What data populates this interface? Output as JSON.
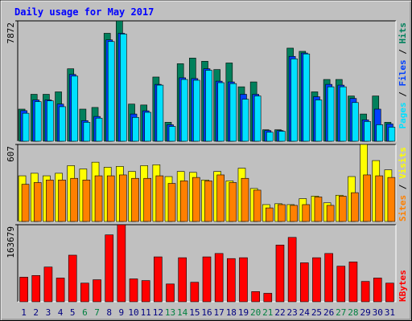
{
  "chart_data": [
    {
      "type": "bar",
      "title": "Daily usage for May 2017",
      "legend_separator": " / ",
      "ylim": [
        0,
        7872
      ],
      "yticks": [
        7872
      ],
      "series": [
        {
          "name": "Hits",
          "color": "#00805c",
          "values": [
            2100,
            3070,
            3070,
            3230,
            4740,
            2100,
            2210,
            7060,
            7872,
            2430,
            2370,
            4200,
            1240,
            5070,
            5440,
            5230,
            4690,
            5120,
            3560,
            3880,
            750,
            750,
            6090,
            5880,
            3230,
            4040,
            4040,
            2960,
            1780,
            2960,
            1240
          ]
        },
        {
          "name": "Files",
          "color": "#0040ff",
          "values": [
            2000,
            2700,
            2700,
            2430,
            4370,
            1350,
            1620,
            6630,
            7060,
            1780,
            1990,
            3720,
            1080,
            4150,
            4100,
            4740,
            3930,
            3880,
            3070,
            3070,
            700,
            700,
            5550,
            5770,
            2910,
            3720,
            3670,
            2800,
            1400,
            2100,
            1130
          ]
        },
        {
          "name": "Pages",
          "color": "#00e0ff",
          "values": [
            1830,
            2590,
            2640,
            2260,
            4260,
            1240,
            1510,
            6520,
            7010,
            1560,
            1890,
            3670,
            970,
            4040,
            3990,
            4640,
            3830,
            3770,
            2750,
            2960,
            590,
            650,
            5390,
            5710,
            2700,
            3560,
            3560,
            2530,
            1290,
            1080,
            920
          ]
        }
      ]
    },
    {
      "type": "bar",
      "legend_separator": " / ",
      "ylim": [
        0,
        607
      ],
      "yticks": [
        607
      ],
      "series": [
        {
          "name": "Visits",
          "color": "#ffff00",
          "values": [
            360,
            380,
            360,
            380,
            440,
            414,
            467,
            427,
            434,
            394,
            440,
            447,
            354,
            394,
            387,
            327,
            394,
            320,
            420,
            260,
            133,
            140,
            133,
            180,
            200,
            147,
            207,
            354,
            607,
            480,
            407
          ]
        },
        {
          "name": "Sites",
          "color": "#ff8000",
          "values": [
            293,
            307,
            327,
            327,
            340,
            327,
            360,
            360,
            367,
            340,
            340,
            360,
            300,
            320,
            347,
            320,
            367,
            307,
            340,
            247,
            107,
            133,
            127,
            133,
            193,
            127,
            200,
            227,
            367,
            360,
            347
          ]
        }
      ]
    },
    {
      "type": "bar",
      "ylim": [
        0,
        163679
      ],
      "yticks": [
        163679
      ],
      "categories": [
        "1",
        "2",
        "3",
        "4",
        "5",
        "6",
        "7",
        "8",
        "9",
        "10",
        "11",
        "12",
        "13",
        "14",
        "15",
        "16",
        "17",
        "18",
        "19",
        "20",
        "21",
        "22",
        "23",
        "24",
        "25",
        "26",
        "27",
        "28",
        "29",
        "30",
        "31"
      ],
      "category_label_colors": [
        "#000080",
        "#000080",
        "#000080",
        "#000080",
        "#000080",
        "#008040",
        "#008040",
        "#000080",
        "#000080",
        "#000080",
        "#000080",
        "#000080",
        "#008040",
        "#008040",
        "#000080",
        "#000080",
        "#000080",
        "#000080",
        "#000080",
        "#008040",
        "#008040",
        "#000080",
        "#000080",
        "#000080",
        "#000080",
        "#000080",
        "#008040",
        "#008040",
        "#000080",
        "#000080",
        "#000080"
      ],
      "series": [
        {
          "name": "KBytes",
          "color": "#ff0000",
          "values": [
            52170,
            55770,
            73760,
            50370,
            98950,
            39580,
            46770,
            142120,
            163679,
            48570,
            44980,
            95350,
            37780,
            93550,
            41380,
            95350,
            102540,
            91750,
            93550,
            21590,
            17990,
            120530,
            136720,
            82750,
            93550,
            102540,
            75560,
            84550,
            43180,
            50370,
            39580
          ]
        }
      ]
    }
  ]
}
